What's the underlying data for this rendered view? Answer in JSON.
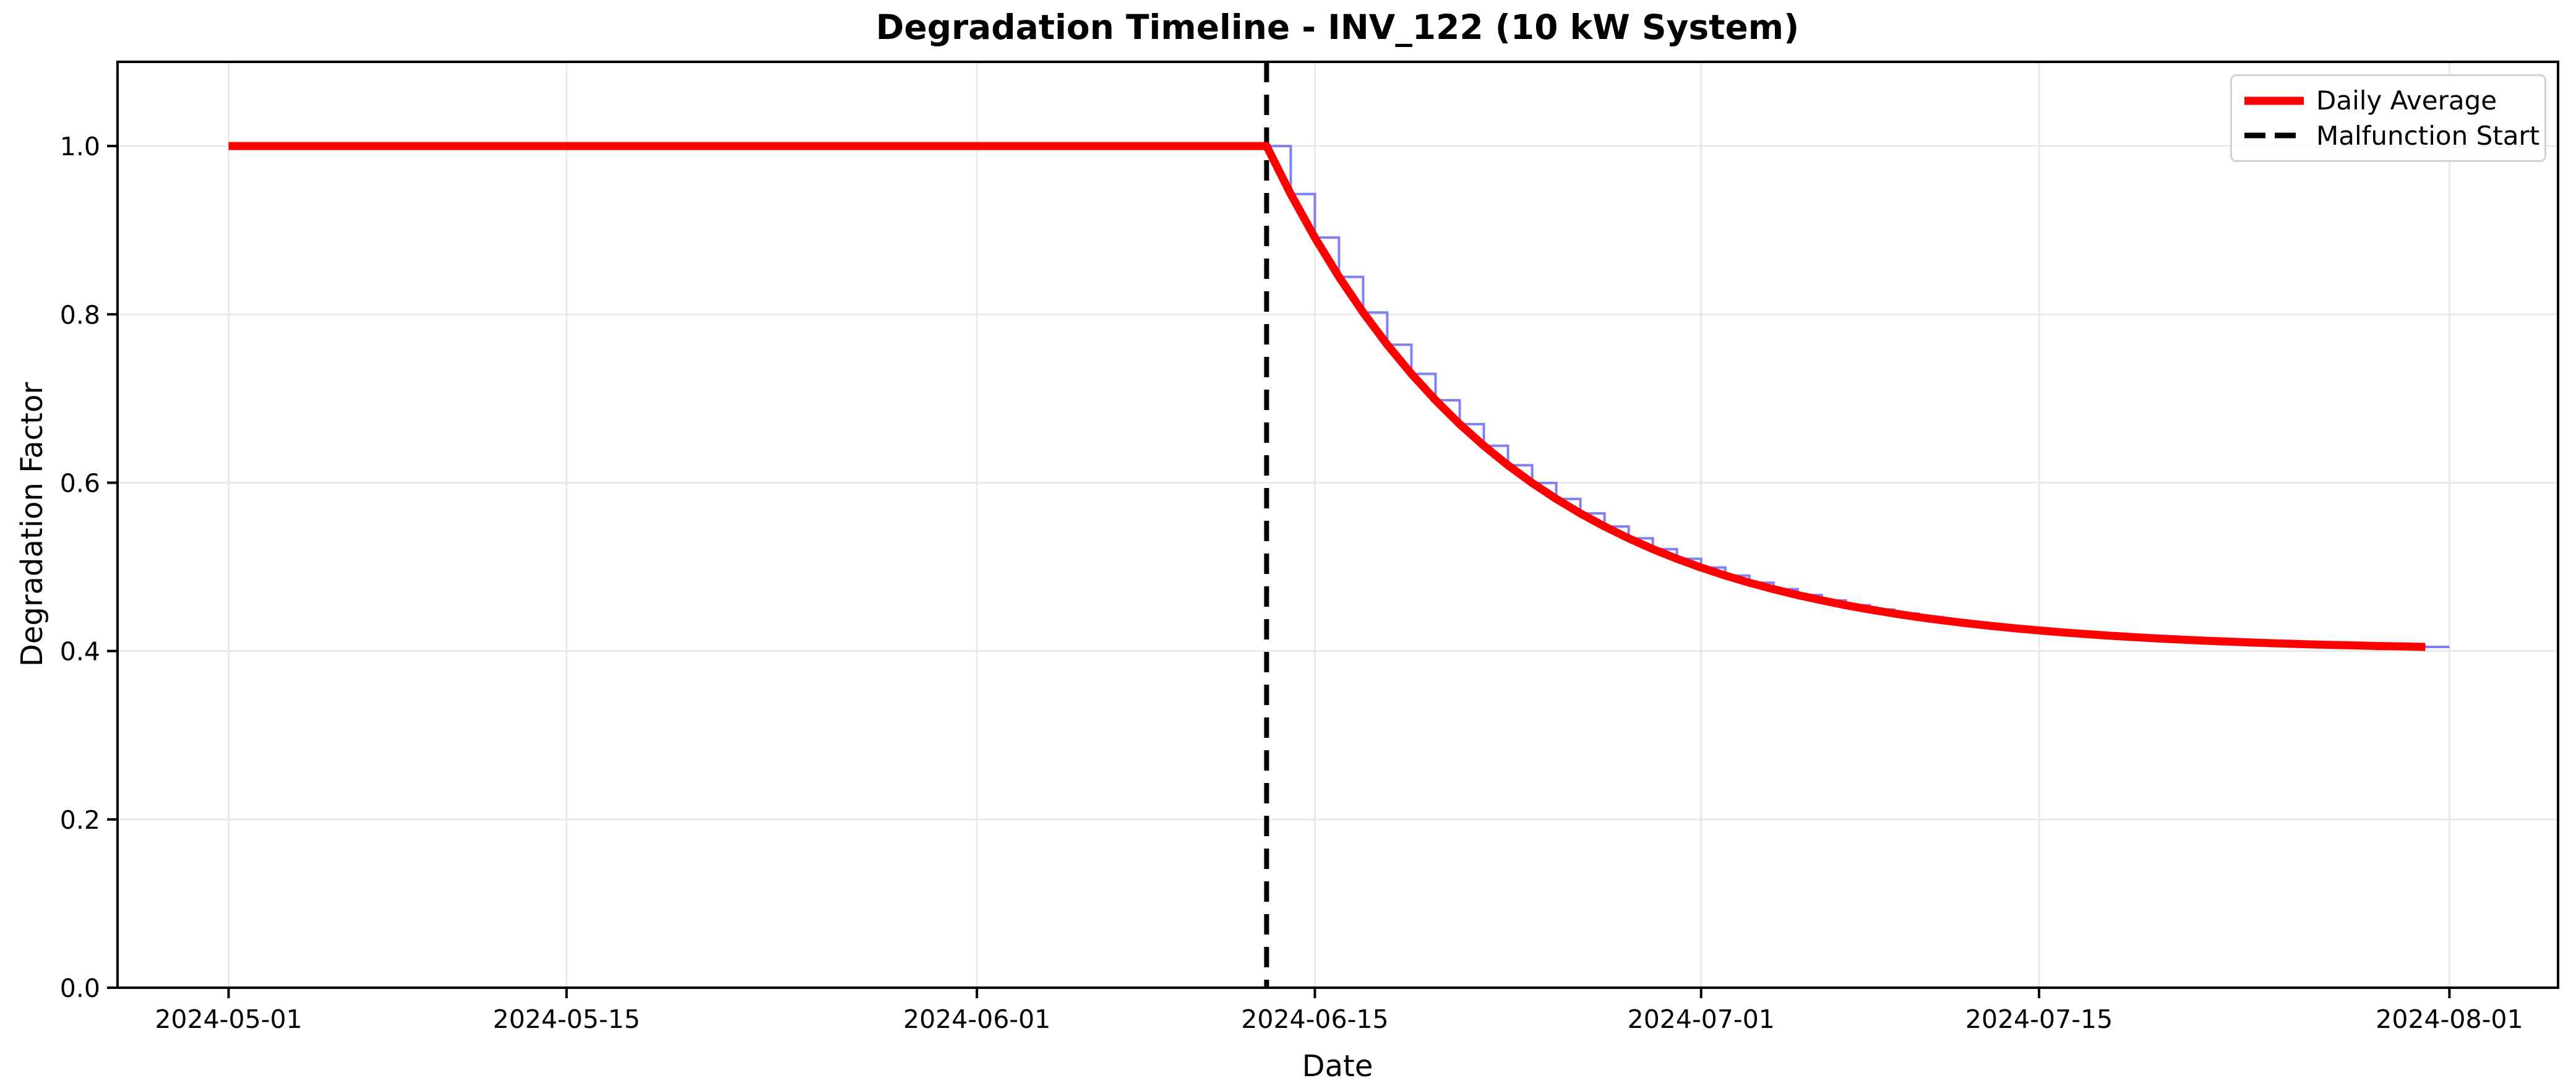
{
  "chart_data": {
    "type": "line",
    "title": "Degradation Timeline - INV_122 (10 kW System)",
    "xlabel": "Date",
    "ylabel": "Degradation Factor",
    "grid": true,
    "grid_color": "#e9e9e9",
    "background_color": "#ffffff",
    "spine_color": "#000000",
    "ylim": [
      0,
      1.1
    ],
    "xlim_days": [
      -4.6,
      96.5
    ],
    "start_date": "2024-05-01",
    "end_date": "2024-08-01",
    "x_ticks": [
      {
        "day": 0,
        "label": "2024-05-01"
      },
      {
        "day": 14,
        "label": "2024-05-15"
      },
      {
        "day": 31,
        "label": "2024-06-01"
      },
      {
        "day": 45,
        "label": "2024-06-15"
      },
      {
        "day": 61,
        "label": "2024-07-01"
      },
      {
        "day": 75,
        "label": "2024-07-15"
      },
      {
        "day": 92,
        "label": "2024-08-01"
      }
    ],
    "y_ticks": [
      0.0,
      0.2,
      0.4,
      0.6,
      0.8,
      1.0
    ],
    "y_tick_labels": [
      "0.0",
      "0.2",
      "0.4",
      "0.6",
      "0.8",
      "1.0"
    ],
    "malfunction": {
      "label": "Malfunction Start",
      "date": "2024-06-13",
      "day": 43,
      "line_color": "#000000",
      "line_style": "dashed"
    },
    "decay_model": "flat at 1.0 until 2024-06-13, then 0.4 + 0.6*exp(-0.1*days_since_malfunction), asymptote 0.4, final value ~0.405 on 2024-07-31",
    "daily_values": [
      1.0,
      1.0,
      1.0,
      1.0,
      1.0,
      1.0,
      1.0,
      1.0,
      1.0,
      1.0,
      1.0,
      1.0,
      1.0,
      1.0,
      1.0,
      1.0,
      1.0,
      1.0,
      1.0,
      1.0,
      1.0,
      1.0,
      1.0,
      1.0,
      1.0,
      1.0,
      1.0,
      1.0,
      1.0,
      1.0,
      1.0,
      1.0,
      1.0,
      1.0,
      1.0,
      1.0,
      1.0,
      1.0,
      1.0,
      1.0,
      1.0,
      1.0,
      1.0,
      1.0,
      0.9429,
      0.8912,
      0.8445,
      0.8022,
      0.7639,
      0.7293,
      0.698,
      0.6696,
      0.6439,
      0.6207,
      0.5997,
      0.5807,
      0.5635,
      0.548,
      0.5339,
      0.5211,
      0.5096,
      0.4992,
      0.4897,
      0.4812,
      0.4735,
      0.4665,
      0.4602,
      0.4544,
      0.4493,
      0.4446,
      0.4403,
      0.4365,
      0.433,
      0.4299,
      0.427,
      0.4245,
      0.4221,
      0.42,
      0.4181,
      0.4164,
      0.4148,
      0.4134,
      0.4121,
      0.411,
      0.4099,
      0.409,
      0.4081,
      0.4074,
      0.4067,
      0.406,
      0.4055,
      0.4049
    ],
    "series": [
      {
        "name": "Daily Average",
        "style": "solid",
        "color": "#ff0000",
        "line_width": 13,
        "data": "daily_values"
      },
      {
        "name": "",
        "style": "step-post",
        "color": "#8080f2",
        "line_width": 4,
        "data": "daily_values",
        "extends_to_day": 92
      }
    ],
    "legend": {
      "position": "upper right",
      "entries": [
        {
          "label": "Daily Average",
          "color": "#ff0000",
          "style": "solid"
        },
        {
          "label": "Malfunction Start",
          "color": "#000000",
          "style": "dashed"
        }
      ]
    }
  }
}
